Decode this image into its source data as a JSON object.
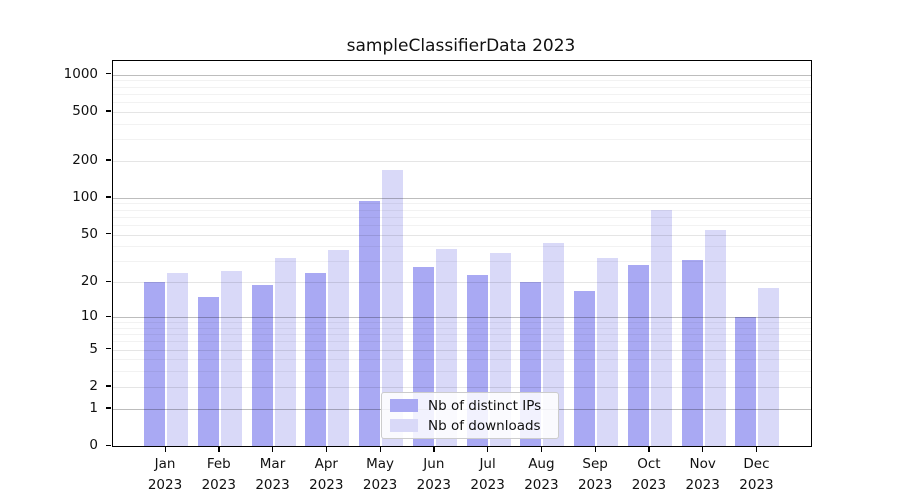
{
  "title": "sampleClassifierData 2023",
  "chart_data": {
    "type": "bar",
    "title": "sampleClassifierData 2023",
    "categories": [
      "Jan 2023",
      "Feb 2023",
      "Mar 2023",
      "Apr 2023",
      "May 2023",
      "Jun 2023",
      "Jul 2023",
      "Aug 2023",
      "Sep 2023",
      "Oct 2023",
      "Nov 2023",
      "Dec 2023"
    ],
    "series": [
      {
        "name": "Nb of distinct IPs",
        "color": "#a9a9f3",
        "values": [
          20,
          15,
          19,
          24,
          94,
          27,
          23,
          20,
          17,
          28,
          31,
          10
        ]
      },
      {
        "name": "Nb of downloads",
        "color": "#d9d9f8",
        "values": [
          24,
          25,
          32,
          37,
          170,
          38,
          35,
          43,
          32,
          80,
          55,
          18
        ]
      }
    ],
    "xlabel": "",
    "ylabel": "",
    "yscale": "log1p",
    "y_ticks": [
      0,
      1,
      2,
      5,
      10,
      20,
      50,
      100,
      200,
      500,
      1000
    ],
    "ylim": [
      0,
      1300
    ],
    "grid": true,
    "legend_position": "lower center"
  }
}
